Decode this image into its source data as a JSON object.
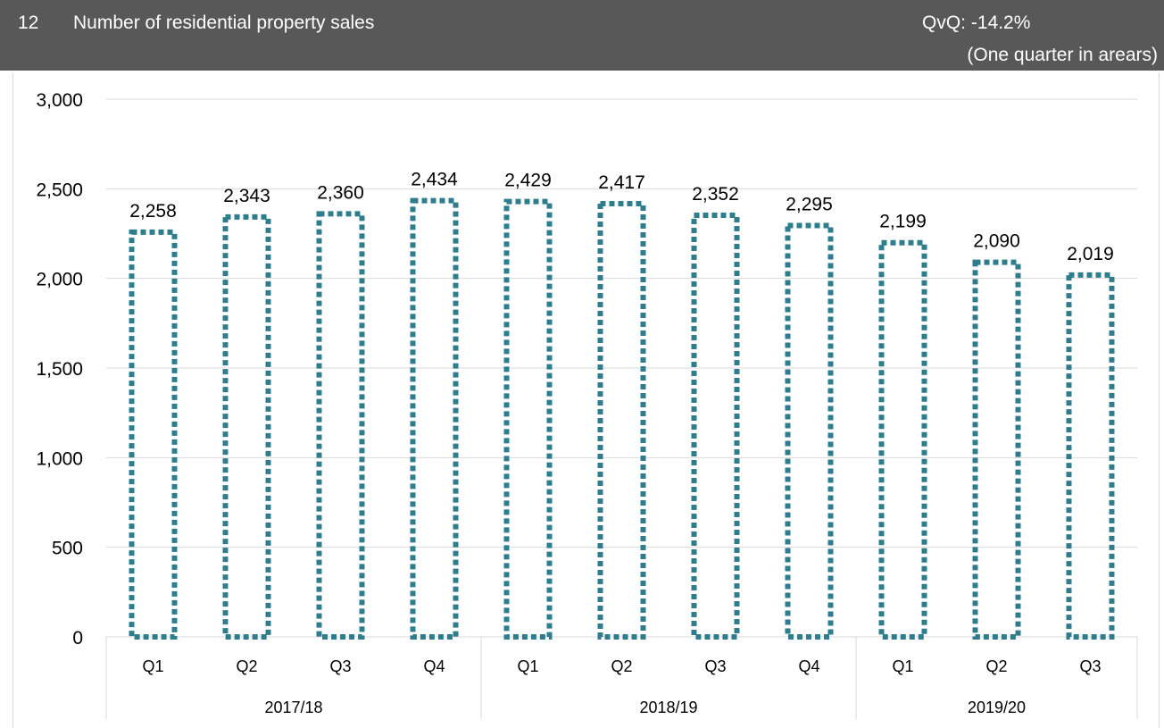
{
  "header": {
    "number": "12",
    "title": "Number of residential property sales",
    "qvq": "QvQ: -14.2%",
    "note": "(One quarter in arears)"
  },
  "colors": {
    "header_bg": "#585858",
    "bar_outline": "#2e7d8c",
    "grid": "#d9d9d9"
  },
  "chart_data": {
    "type": "bar",
    "style": "outlined dotted bars, no fill",
    "categories": [
      "Q1",
      "Q2",
      "Q3",
      "Q4",
      "Q1",
      "Q2",
      "Q3",
      "Q4",
      "Q1",
      "Q2",
      "Q3"
    ],
    "groups": [
      {
        "label": "2017/18",
        "quarters": 4
      },
      {
        "label": "2018/19",
        "quarters": 4
      },
      {
        "label": "2019/20",
        "quarters": 3
      }
    ],
    "values": [
      2258,
      2343,
      2360,
      2434,
      2429,
      2417,
      2352,
      2295,
      2199,
      2090,
      2019
    ],
    "value_labels": [
      "2,258",
      "2,343",
      "2,360",
      "2,434",
      "2,429",
      "2,417",
      "2,352",
      "2,295",
      "2,199",
      "2,090",
      "2,019"
    ],
    "ylim": [
      0,
      3000
    ],
    "yticks": [
      0,
      500,
      1000,
      1500,
      2000,
      2500,
      3000
    ],
    "ytick_labels": [
      "0",
      "500",
      "1,000",
      "1,500",
      "2,000",
      "2,500",
      "3,000"
    ],
    "grid": true,
    "legend": "none"
  }
}
